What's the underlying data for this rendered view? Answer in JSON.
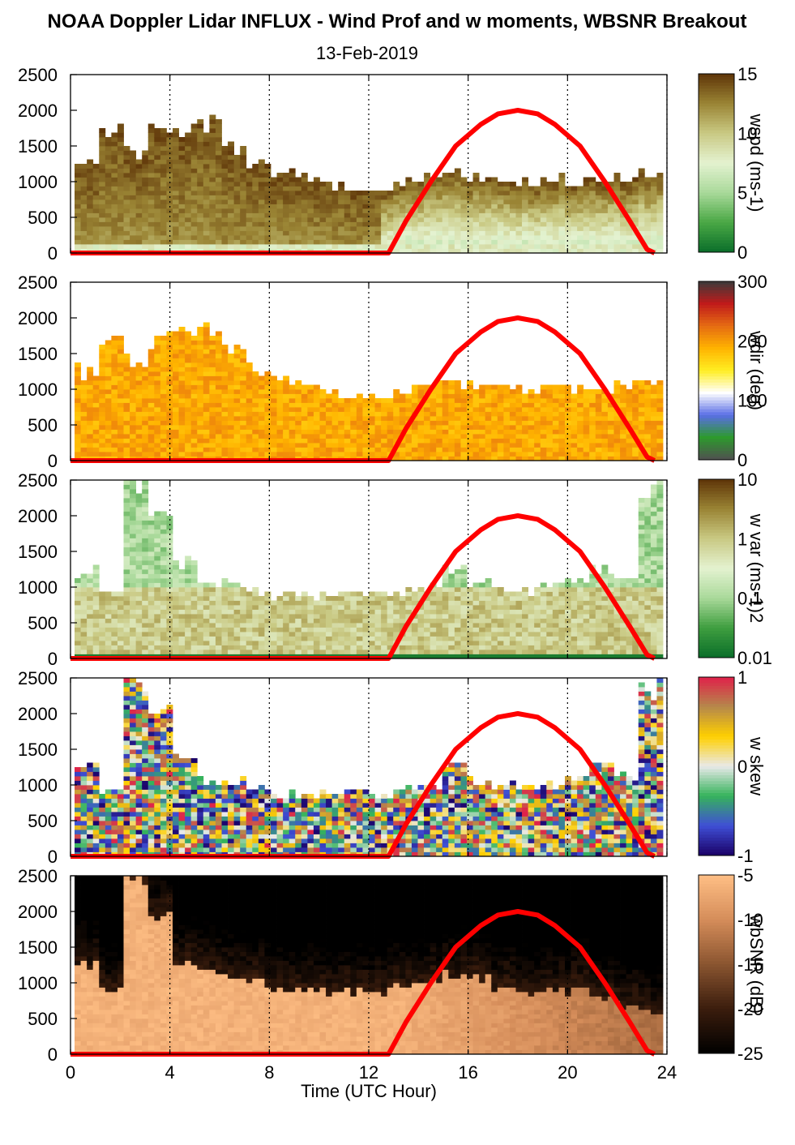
{
  "title": "NOAA Doppler Lidar INFLUX - Wind Prof and w moments, WBSNR Breakout",
  "date": "13-Feb-2019",
  "xlabel": "Time (UTC Hour)",
  "colors": {
    "sun_curve": "#ff0000",
    "gridline": "#000000"
  },
  "chart_data": {
    "type": "heatmap",
    "x_range": [
      0,
      24
    ],
    "x_ticks": [
      "0",
      "4",
      "8",
      "12",
      "16",
      "20",
      "24"
    ],
    "y_range": [
      0,
      2500
    ],
    "y_ticks": [
      "0",
      "500",
      "1000",
      "1500",
      "2000",
      "2500"
    ],
    "vertical_gridlines_at": [
      4,
      8,
      12,
      16,
      20,
      24
    ],
    "sun_elevation_curve": {
      "x": [
        12.8,
        13.5,
        14.5,
        15.5,
        16.5,
        17.2,
        18.0,
        18.8,
        19.5,
        20.5,
        21.5,
        22.5,
        23.2,
        23.5
      ],
      "y": [
        0,
        450,
        1000,
        1500,
        1800,
        1950,
        2000,
        1950,
        1800,
        1500,
        1000,
        450,
        50,
        0
      ]
    },
    "panels": [
      {
        "variable": "wspd",
        "colorbar_label": "wspd (ms-1)",
        "colorbar_ticks": [
          "0",
          "5",
          "10",
          "15"
        ],
        "colorscale": [
          "#0a6e2a",
          "#4aa845",
          "#a9d99a",
          "#e4f2d0",
          "#c9c983",
          "#9a8434",
          "#5e3408"
        ],
        "top_m": [
          1250,
          1700,
          1400,
          1700,
          1750,
          1800,
          1500,
          1250,
          1150,
          1050,
          950,
          900,
          900,
          1000,
          1050,
          1100,
          1050,
          1000,
          1000,
          1050,
          1000,
          1000,
          1050,
          1100
        ],
        "bottom_value": 8,
        "top_value": 15
      },
      {
        "variable": "wdir",
        "colorbar_label": "wdir (deg)",
        "colorbar_ticks": [
          "0",
          "100",
          "200",
          "300"
        ],
        "colorscale": [
          "#505050",
          "#2d9a2d",
          "#5a6ee6",
          "#ffffff",
          "#ffee22",
          "#ffb300",
          "#e56b12",
          "#c01a1a",
          "#3a3a3a"
        ],
        "top_m": [
          1250,
          1700,
          1400,
          1700,
          1750,
          1800,
          1500,
          1250,
          1150,
          1050,
          950,
          900,
          900,
          1000,
          1050,
          1100,
          1050,
          1000,
          1000,
          1050,
          1000,
          1000,
          1050,
          1100
        ],
        "dominant_value": 245
      },
      {
        "variable": "w var",
        "colorbar_label": "w var (ms-1)2",
        "colorbar_ticks": [
          "0.01",
          "0.1",
          "1",
          "10"
        ],
        "colorscale": [
          "#0a6e2a",
          "#3f9e3f",
          "#a9d99a",
          "#e4f2d0",
          "#c9c983",
          "#9a8434",
          "#5e3408"
        ],
        "colorbar_scale": "log",
        "top_m": [
          1250,
          900,
          2500,
          2000,
          1350,
          1100,
          1050,
          950,
          900,
          850,
          900,
          900,
          900,
          950,
          1000,
          1250,
          1050,
          1000,
          950,
          1000,
          1100,
          1250,
          1100,
          2400
        ]
      },
      {
        "variable": "w skew",
        "colorbar_label": "w skew",
        "colorbar_ticks": [
          "-1",
          "0",
          "1"
        ],
        "colorscale": [
          "#1a0066",
          "#3f4fd6",
          "#35b35b",
          "#e9e9e9",
          "#ffd000",
          "#b5884b",
          "#e0204a"
        ],
        "top_m": [
          1250,
          900,
          2500,
          2000,
          1350,
          1100,
          1050,
          950,
          900,
          850,
          900,
          900,
          900,
          950,
          1000,
          1250,
          1050,
          1000,
          950,
          1000,
          1100,
          1250,
          1100,
          2400
        ]
      },
      {
        "variable": "wbSNR",
        "colorbar_label": "wbSNR (dB)",
        "colorbar_ticks": [
          "-25",
          "-20",
          "-15",
          "-10",
          "-5"
        ],
        "colorscale": [
          "#000000",
          "#3b1d0d",
          "#8a5530",
          "#d58d5a",
          "#ffbf85"
        ],
        "top_m": [
          1250,
          900,
          2500,
          1950,
          1300,
          1150,
          1050,
          1000,
          950,
          900,
          850,
          900,
          900,
          950,
          1000,
          1100,
          1050,
          950,
          850,
          900,
          900,
          800,
          700,
          600
        ],
        "near_surface_value": -6,
        "aloft_value": -24
      }
    ]
  }
}
